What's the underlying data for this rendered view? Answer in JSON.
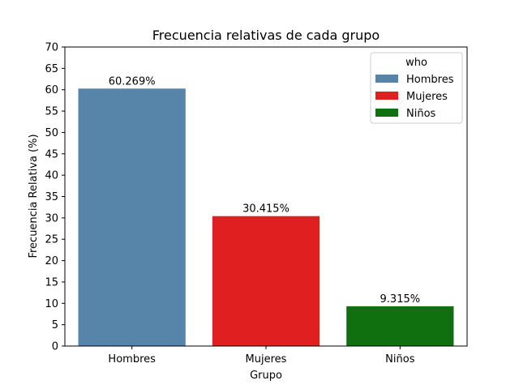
{
  "chart_data": {
    "type": "bar",
    "title": "Frecuencia relativas de cada grupo",
    "xlabel": "Grupo",
    "ylabel": "Frecuencia Relativa (%)",
    "categories": [
      "Hombres",
      "Mujeres",
      "Niños"
    ],
    "values": [
      60.269,
      30.415,
      9.315
    ],
    "data_labels": [
      "60.269%",
      "30.415%",
      "9.315%"
    ],
    "colors": [
      "#5784a9",
      "#e02020",
      "#107010"
    ],
    "ylim": [
      0,
      70
    ],
    "yticks": [
      0,
      5,
      10,
      15,
      20,
      25,
      30,
      35,
      40,
      45,
      50,
      55,
      60,
      65,
      70
    ],
    "grid": false,
    "legend": {
      "title": "who",
      "placement": "top-right",
      "entries": [
        "Hombres",
        "Mujeres",
        "Niños"
      ]
    }
  }
}
